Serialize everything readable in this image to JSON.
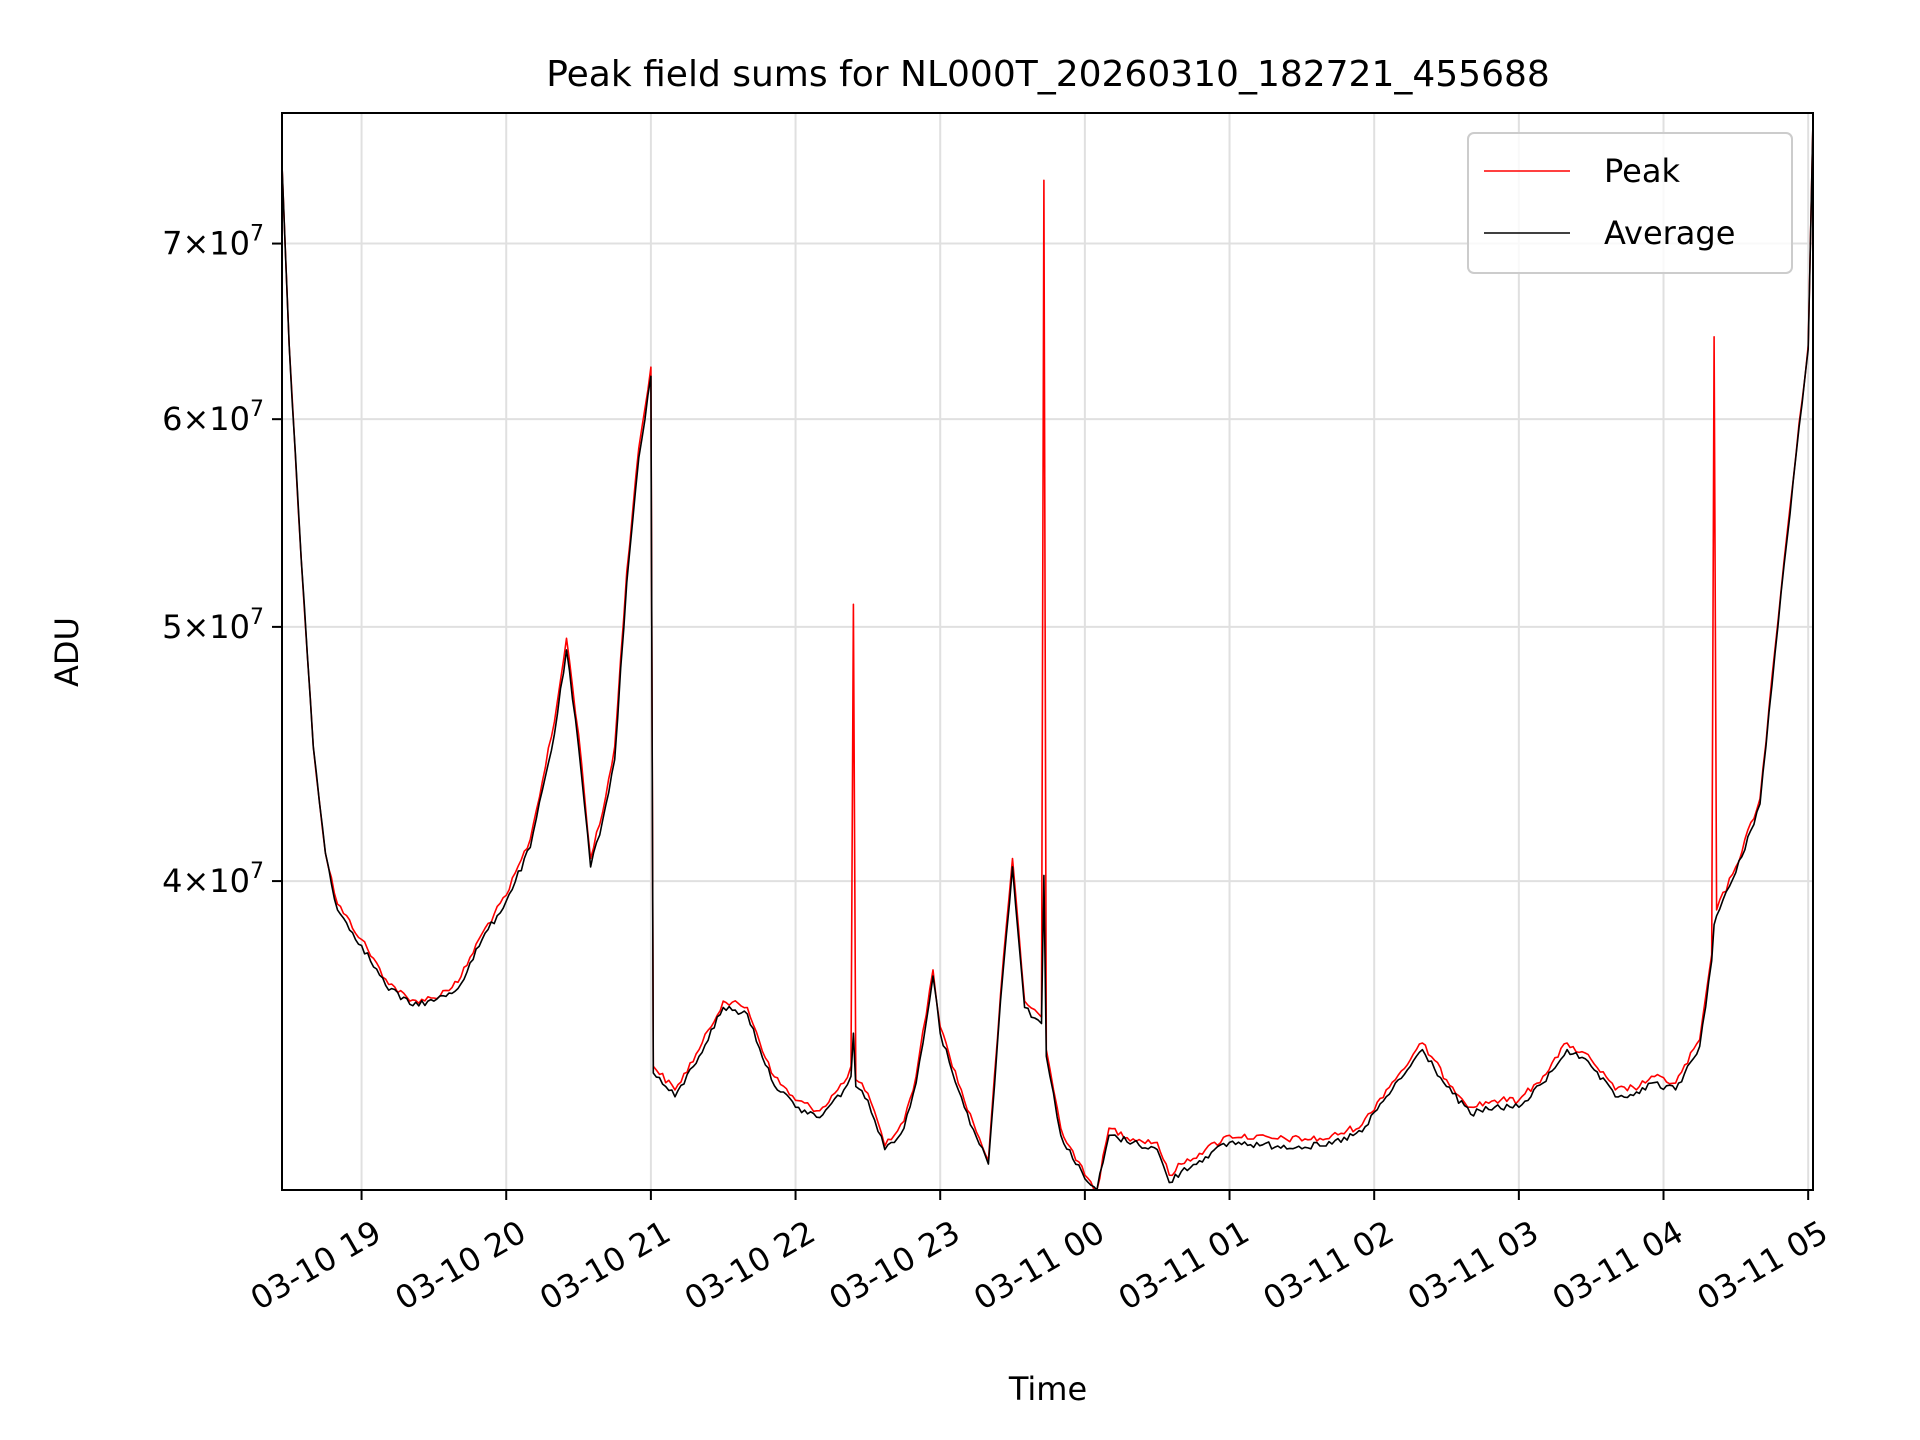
{
  "chart_data": {
    "type": "line",
    "title": "Peak field sums for NL000T_20260310_182721_455688",
    "xlabel": "Time",
    "ylabel": "ADU",
    "y_scale": "log",
    "ylim": [
      30500000,
      78500000
    ],
    "xlim": [
      "2026-03-10 18:27",
      "2026-03-11 05:02"
    ],
    "grid": true,
    "legend_position": "top-right",
    "x_ticks": [
      {
        "t": "2026-03-10 19:00",
        "label": "03-10 19"
      },
      {
        "t": "2026-03-10 20:00",
        "label": "03-10 20"
      },
      {
        "t": "2026-03-10 21:00",
        "label": "03-10 21"
      },
      {
        "t": "2026-03-10 22:00",
        "label": "03-10 22"
      },
      {
        "t": "2026-03-10 23:00",
        "label": "03-10 23"
      },
      {
        "t": "2026-03-11 00:00",
        "label": "03-11 00"
      },
      {
        "t": "2026-03-11 01:00",
        "label": "03-11 01"
      },
      {
        "t": "2026-03-11 02:00",
        "label": "03-11 02"
      },
      {
        "t": "2026-03-11 03:00",
        "label": "03-11 03"
      },
      {
        "t": "2026-03-11 04:00",
        "label": "03-11 04"
      },
      {
        "t": "2026-03-11 05:00",
        "label": "03-11 05"
      }
    ],
    "y_ticks": [
      {
        "value": 40000000,
        "mantissa": "4",
        "exponent": "7"
      },
      {
        "value": 50000000,
        "mantissa": "5",
        "exponent": "7"
      },
      {
        "value": 60000000,
        "mantissa": "6",
        "exponent": "7"
      },
      {
        "value": 70000000,
        "mantissa": "7",
        "exponent": "7"
      }
    ],
    "series": [
      {
        "name": "Peak",
        "color": "#ff0000",
        "points": [
          [
            "2026-03-10 18:27",
            75000000
          ],
          [
            "2026-03-10 18:30",
            64000000
          ],
          [
            "2026-03-10 18:35",
            53000000
          ],
          [
            "2026-03-10 18:40",
            45000000
          ],
          [
            "2026-03-10 18:45",
            41000000
          ],
          [
            "2026-03-10 18:50",
            39200000
          ],
          [
            "2026-03-10 19:00",
            38000000
          ],
          [
            "2026-03-10 19:10",
            36700000
          ],
          [
            "2026-03-10 19:20",
            36000000
          ],
          [
            "2026-03-10 19:30",
            36100000
          ],
          [
            "2026-03-10 19:40",
            36600000
          ],
          [
            "2026-03-10 19:50",
            38200000
          ],
          [
            "2026-03-10 20:00",
            39500000
          ],
          [
            "2026-03-10 20:10",
            41500000
          ],
          [
            "2026-03-10 20:20",
            46000000
          ],
          [
            "2026-03-10 20:25",
            49500000
          ],
          [
            "2026-03-10 20:30",
            45500000
          ],
          [
            "2026-03-10 20:35",
            40800000
          ],
          [
            "2026-03-10 20:40",
            42500000
          ],
          [
            "2026-03-10 20:45",
            45000000
          ],
          [
            "2026-03-10 20:50",
            52500000
          ],
          [
            "2026-03-10 20:55",
            58500000
          ],
          [
            "2026-03-10 21:00",
            62800000
          ],
          [
            "2026-03-10 21:01",
            34000000
          ],
          [
            "2026-03-10 21:10",
            33300000
          ],
          [
            "2026-03-10 21:20",
            34500000
          ],
          [
            "2026-03-10 21:30",
            36000000
          ],
          [
            "2026-03-10 21:40",
            35800000
          ],
          [
            "2026-03-10 21:50",
            33800000
          ],
          [
            "2026-03-10 22:00",
            33000000
          ],
          [
            "2026-03-10 22:10",
            32700000
          ],
          [
            "2026-03-10 22:20",
            33500000
          ],
          [
            "2026-03-10 22:23",
            34000000
          ],
          [
            "2026-03-10 22:24",
            51000000
          ],
          [
            "2026-03-10 22:25",
            33600000
          ],
          [
            "2026-03-10 22:30",
            33200000
          ],
          [
            "2026-03-10 22:37",
            31700000
          ],
          [
            "2026-03-10 22:45",
            32400000
          ],
          [
            "2026-03-10 22:50",
            33700000
          ],
          [
            "2026-03-10 22:57",
            37000000
          ],
          [
            "2026-03-10 23:00",
            35200000
          ],
          [
            "2026-03-10 23:10",
            33000000
          ],
          [
            "2026-03-10 23:20",
            31300000
          ],
          [
            "2026-03-10 23:25",
            36200000
          ],
          [
            "2026-03-10 23:30",
            40800000
          ],
          [
            "2026-03-10 23:35",
            36000000
          ],
          [
            "2026-03-10 23:42",
            35500000
          ],
          [
            "2026-03-10 23:43",
            74000000
          ],
          [
            "2026-03-10 23:44",
            34500000
          ],
          [
            "2026-03-10 23:50",
            32200000
          ],
          [
            "2026-03-11 00:00",
            30900000
          ],
          [
            "2026-03-11 00:05",
            30500000
          ],
          [
            "2026-03-11 00:10",
            32200000
          ],
          [
            "2026-03-11 00:20",
            31900000
          ],
          [
            "2026-03-11 00:30",
            31800000
          ],
          [
            "2026-03-11 00:35",
            30900000
          ],
          [
            "2026-03-11 00:40",
            31200000
          ],
          [
            "2026-03-11 00:50",
            31600000
          ],
          [
            "2026-03-11 01:00",
            32000000
          ],
          [
            "2026-03-11 01:20",
            31900000
          ],
          [
            "2026-03-11 01:40",
            31900000
          ],
          [
            "2026-03-11 01:55",
            32300000
          ],
          [
            "2026-03-11 02:05",
            33300000
          ],
          [
            "2026-03-11 02:15",
            34200000
          ],
          [
            "2026-03-11 02:20",
            34700000
          ],
          [
            "2026-03-11 02:30",
            33600000
          ],
          [
            "2026-03-11 02:40",
            32800000
          ],
          [
            "2026-03-11 02:50",
            33000000
          ],
          [
            "2026-03-11 03:00",
            33000000
          ],
          [
            "2026-03-11 03:10",
            33700000
          ],
          [
            "2026-03-11 03:20",
            34700000
          ],
          [
            "2026-03-11 03:30",
            34200000
          ],
          [
            "2026-03-11 03:40",
            33300000
          ],
          [
            "2026-03-11 03:50",
            33400000
          ],
          [
            "2026-03-11 03:55",
            33700000
          ],
          [
            "2026-03-11 04:05",
            33500000
          ],
          [
            "2026-03-11 04:15",
            34800000
          ],
          [
            "2026-03-11 04:20",
            37500000
          ],
          [
            "2026-03-11 04:21",
            64500000
          ],
          [
            "2026-03-11 04:22",
            39000000
          ],
          [
            "2026-03-11 04:30",
            40500000
          ],
          [
            "2026-03-11 04:40",
            43000000
          ],
          [
            "2026-03-11 04:50",
            53000000
          ],
          [
            "2026-03-11 05:00",
            64000000
          ],
          [
            "2026-03-11 05:02",
            78000000
          ]
        ]
      },
      {
        "name": "Average",
        "color": "#000000",
        "points": [
          [
            "2026-03-10 18:27",
            75000000
          ],
          [
            "2026-03-10 18:30",
            64000000
          ],
          [
            "2026-03-10 18:35",
            53000000
          ],
          [
            "2026-03-10 18:40",
            45000000
          ],
          [
            "2026-03-10 18:45",
            41000000
          ],
          [
            "2026-03-10 18:50",
            39000000
          ],
          [
            "2026-03-10 19:00",
            37800000
          ],
          [
            "2026-03-10 19:10",
            36500000
          ],
          [
            "2026-03-10 19:20",
            35900000
          ],
          [
            "2026-03-10 19:30",
            36000000
          ],
          [
            "2026-03-10 19:40",
            36400000
          ],
          [
            "2026-03-10 19:50",
            38000000
          ],
          [
            "2026-03-10 20:00",
            39300000
          ],
          [
            "2026-03-10 20:10",
            41200000
          ],
          [
            "2026-03-10 20:20",
            45500000
          ],
          [
            "2026-03-10 20:25",
            49000000
          ],
          [
            "2026-03-10 20:30",
            45000000
          ],
          [
            "2026-03-10 20:35",
            40500000
          ],
          [
            "2026-03-10 20:40",
            42200000
          ],
          [
            "2026-03-10 20:45",
            44500000
          ],
          [
            "2026-03-10 20:50",
            52000000
          ],
          [
            "2026-03-10 20:55",
            58000000
          ],
          [
            "2026-03-10 21:00",
            62300000
          ],
          [
            "2026-03-10 21:01",
            33800000
          ],
          [
            "2026-03-10 21:10",
            33100000
          ],
          [
            "2026-03-10 21:20",
            34300000
          ],
          [
            "2026-03-10 21:30",
            35800000
          ],
          [
            "2026-03-10 21:40",
            35600000
          ],
          [
            "2026-03-10 21:50",
            33600000
          ],
          [
            "2026-03-10 22:00",
            32800000
          ],
          [
            "2026-03-10 22:10",
            32500000
          ],
          [
            "2026-03-10 22:20",
            33300000
          ],
          [
            "2026-03-10 22:23",
            33700000
          ],
          [
            "2026-03-10 22:24",
            35000000
          ],
          [
            "2026-03-10 22:25",
            33400000
          ],
          [
            "2026-03-10 22:30",
            33000000
          ],
          [
            "2026-03-10 22:37",
            31600000
          ],
          [
            "2026-03-10 22:45",
            32200000
          ],
          [
            "2026-03-10 22:50",
            33500000
          ],
          [
            "2026-03-10 22:57",
            36800000
          ],
          [
            "2026-03-10 23:00",
            35000000
          ],
          [
            "2026-03-10 23:10",
            32800000
          ],
          [
            "2026-03-10 23:20",
            31200000
          ],
          [
            "2026-03-10 23:25",
            36000000
          ],
          [
            "2026-03-10 23:30",
            40500000
          ],
          [
            "2026-03-10 23:35",
            35800000
          ],
          [
            "2026-03-10 23:42",
            35300000
          ],
          [
            "2026-03-10 23:43",
            40200000
          ],
          [
            "2026-03-10 23:44",
            34300000
          ],
          [
            "2026-03-10 23:50",
            32000000
          ],
          [
            "2026-03-11 00:00",
            30800000
          ],
          [
            "2026-03-11 00:05",
            30500000
          ],
          [
            "2026-03-11 00:10",
            32000000
          ],
          [
            "2026-03-11 00:20",
            31800000
          ],
          [
            "2026-03-11 00:30",
            31600000
          ],
          [
            "2026-03-11 00:35",
            30700000
          ],
          [
            "2026-03-11 00:40",
            31000000
          ],
          [
            "2026-03-11 00:50",
            31400000
          ],
          [
            "2026-03-11 01:00",
            31800000
          ],
          [
            "2026-03-11 01:20",
            31700000
          ],
          [
            "2026-03-11 01:40",
            31700000
          ],
          [
            "2026-03-11 01:55",
            32100000
          ],
          [
            "2026-03-11 02:05",
            33100000
          ],
          [
            "2026-03-11 02:15",
            34000000
          ],
          [
            "2026-03-11 02:20",
            34500000
          ],
          [
            "2026-03-11 02:30",
            33400000
          ],
          [
            "2026-03-11 02:40",
            32600000
          ],
          [
            "2026-03-11 02:50",
            32800000
          ],
          [
            "2026-03-11 03:00",
            32800000
          ],
          [
            "2026-03-11 03:10",
            33500000
          ],
          [
            "2026-03-11 03:20",
            34500000
          ],
          [
            "2026-03-11 03:30",
            34000000
          ],
          [
            "2026-03-11 03:40",
            33100000
          ],
          [
            "2026-03-11 03:50",
            33200000
          ],
          [
            "2026-03-11 03:55",
            33500000
          ],
          [
            "2026-03-11 04:05",
            33300000
          ],
          [
            "2026-03-11 04:15",
            34600000
          ],
          [
            "2026-03-11 04:20",
            37300000
          ],
          [
            "2026-03-11 04:21",
            38500000
          ],
          [
            "2026-03-11 04:22",
            38800000
          ],
          [
            "2026-03-11 04:30",
            40300000
          ],
          [
            "2026-03-11 04:40",
            42800000
          ],
          [
            "2026-03-11 04:50",
            52800000
          ],
          [
            "2026-03-11 05:00",
            63800000
          ],
          [
            "2026-03-11 05:02",
            78000000
          ]
        ]
      }
    ]
  }
}
